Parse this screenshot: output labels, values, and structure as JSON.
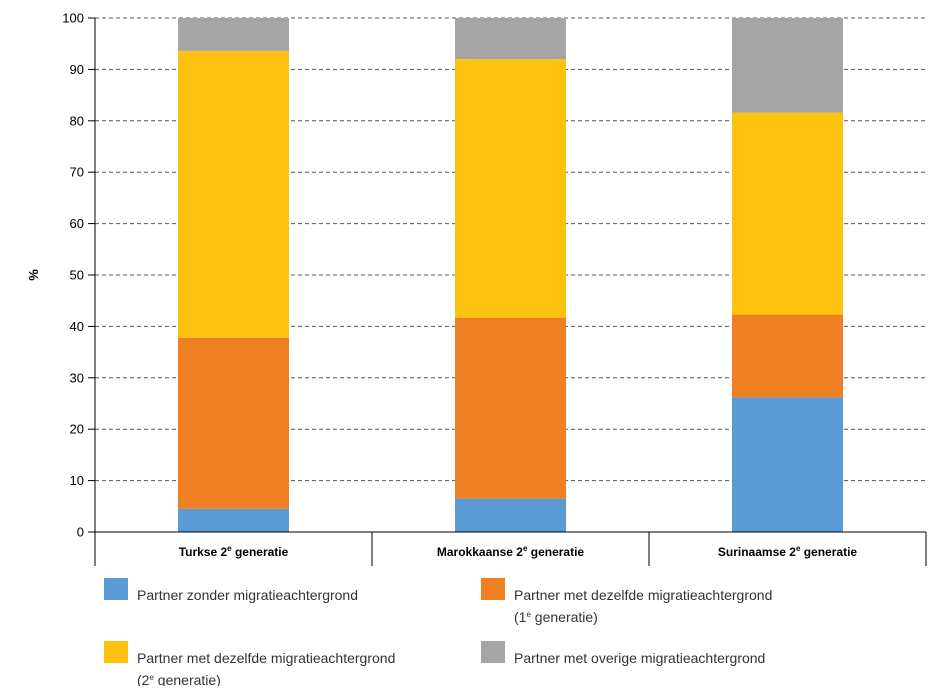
{
  "chart_data": {
    "type": "bar",
    "stacked": true,
    "ylabel": "%",
    "ylim": [
      0,
      100
    ],
    "yticks": [
      0,
      10,
      20,
      30,
      40,
      50,
      60,
      70,
      80,
      90,
      100
    ],
    "grid": "dashed horizontal",
    "categories": [
      {
        "base": "Turkse 2",
        "sup": "e",
        "rest": " generatie"
      },
      {
        "base": "Marokkaanse 2",
        "sup": "e",
        "rest": " generatie"
      },
      {
        "base": "Surinaamse 2",
        "sup": "e",
        "rest": " generatie"
      }
    ],
    "series": [
      {
        "name": "Partner zonder migratieachtergrond",
        "color": "#5b9bd5",
        "values": [
          4.5,
          6.5,
          26.2
        ]
      },
      {
        "name": "Partner met dezelfde migratieachtergrond (1e generatie)",
        "color": "#ee7f22",
        "values": [
          33.3,
          35.2,
          16.1
        ]
      },
      {
        "name": "Partner met dezelfde migratieachtergrond (2e generatie)",
        "color": "#fdc20f",
        "values": [
          55.8,
          50.3,
          39.3
        ]
      },
      {
        "name": "Partner met overige migratieachtergrond",
        "color": "#a5a5a5",
        "values": [
          6.4,
          8.0,
          18.4
        ]
      }
    ],
    "legend": {
      "position": "bottom",
      "items": [
        {
          "lines": [
            {
              "text": "Partner zonder migratieachtergrond"
            }
          ]
        },
        {
          "lines": [
            {
              "text": "Partner met dezelfde migratieachtergrond"
            },
            {
              "base": "(1",
              "sup": "e",
              "rest": " generatie)"
            }
          ]
        },
        {
          "lines": [
            {
              "text": "Partner met dezelfde migratieachtergrond"
            },
            {
              "base": "(2",
              "sup": "e",
              "rest": " generatie)"
            }
          ]
        },
        {
          "lines": [
            {
              "text": "Partner met overige migratieachtergrond"
            }
          ]
        }
      ]
    }
  }
}
